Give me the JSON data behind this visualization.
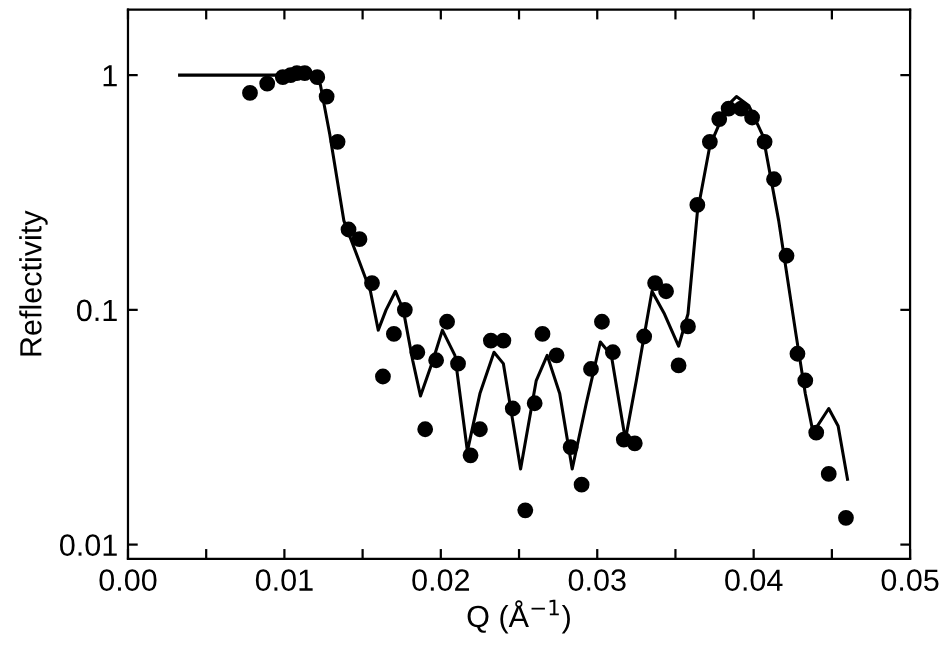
{
  "chart_data": {
    "type": "scatter",
    "xlabel": "Q (Å$^{−1}$)",
    "ylabel": "Reflectivity",
    "log": "y",
    "xlim": [
      0,
      0.05
    ],
    "ylim": [
      0.0087,
      1.9
    ],
    "xticks": [
      {
        "value": 0,
        "label": "0.00"
      },
      {
        "value": 0.005,
        "label": null
      },
      {
        "value": 0.01,
        "label": "0.01"
      },
      {
        "value": 0.015,
        "label": null
      },
      {
        "value": 0.02,
        "label": "0.02"
      },
      {
        "value": 0.025,
        "label": null
      },
      {
        "value": 0.03,
        "label": "0.03"
      },
      {
        "value": 0.035,
        "label": null
      },
      {
        "value": 0.04,
        "label": "0.04"
      },
      {
        "value": 0.045,
        "label": null
      },
      {
        "value": 0.05,
        "label": "0.05"
      }
    ],
    "yticks": [
      0.01,
      0.1,
      1
    ],
    "series": [
      {
        "marker": "circle",
        "color": "#000000",
        "x": [
          0.0078,
          0.0089,
          0.0099,
          0.0104,
          0.0108,
          0.0113,
          0.0121,
          0.0127,
          0.0134,
          0.0141,
          0.0148,
          0.0156,
          0.0163,
          0.017,
          0.0177,
          0.0185,
          0.019,
          0.0197,
          0.0204,
          0.0211,
          0.0219,
          0.0225,
          0.0232,
          0.024,
          0.0246,
          0.0254,
          0.026,
          0.0265,
          0.0274,
          0.0283,
          0.029,
          0.0296,
          0.0303,
          0.031,
          0.0317,
          0.0324,
          0.033,
          0.0337,
          0.0344,
          0.0352,
          0.0358,
          0.0364,
          0.0372,
          0.0378,
          0.0384,
          0.0392,
          0.0399,
          0.0407,
          0.0413,
          0.0421,
          0.0428,
          0.0433,
          0.044,
          0.0448,
          0.0459
        ],
        "values": [
          0.84,
          0.92,
          0.98,
          1.0,
          1.02,
          1.02,
          0.98,
          0.81,
          0.52,
          0.22,
          0.2,
          0.13,
          0.052,
          0.079,
          0.1,
          0.066,
          0.031,
          0.061,
          0.089,
          0.059,
          0.024,
          0.031,
          0.074,
          0.074,
          0.038,
          0.014,
          0.04,
          0.079,
          0.064,
          0.026,
          0.018,
          0.056,
          0.089,
          0.066,
          0.028,
          0.027,
          0.077,
          0.13,
          0.12,
          0.058,
          0.085,
          0.28,
          0.52,
          0.65,
          0.72,
          0.72,
          0.66,
          0.52,
          0.36,
          0.17,
          0.065,
          0.05,
          0.03,
          0.02,
          0.013
        ]
      },
      {
        "type": "line",
        "marker": "none",
        "color": "#000000",
        "x": [
          0.0033,
          0.0117,
          0.0123,
          0.0129,
          0.0138,
          0.0148,
          0.0155,
          0.016,
          0.0165,
          0.0171,
          0.0176,
          0.0182,
          0.0187,
          0.0195,
          0.0201,
          0.0209,
          0.0217,
          0.0225,
          0.0234,
          0.024,
          0.0251,
          0.0261,
          0.0268,
          0.0276,
          0.0284,
          0.0293,
          0.0302,
          0.0309,
          0.0318,
          0.0325,
          0.0335,
          0.0343,
          0.0352,
          0.0358,
          0.0364,
          0.0372,
          0.0383,
          0.0389,
          0.0397,
          0.0406,
          0.0416,
          0.0427,
          0.0433,
          0.0438,
          0.0448,
          0.0454,
          0.046
        ],
        "values": [
          1.0,
          1.0,
          0.91,
          0.56,
          0.24,
          0.16,
          0.12,
          0.082,
          0.1,
          0.12,
          0.1,
          0.061,
          0.043,
          0.061,
          0.082,
          0.064,
          0.025,
          0.044,
          0.066,
          0.059,
          0.021,
          0.05,
          0.064,
          0.044,
          0.021,
          0.04,
          0.073,
          0.064,
          0.028,
          0.05,
          0.12,
          0.096,
          0.07,
          0.096,
          0.26,
          0.5,
          0.74,
          0.81,
          0.74,
          0.55,
          0.24,
          0.079,
          0.044,
          0.03,
          0.038,
          0.032,
          0.019
        ]
      }
    ]
  }
}
